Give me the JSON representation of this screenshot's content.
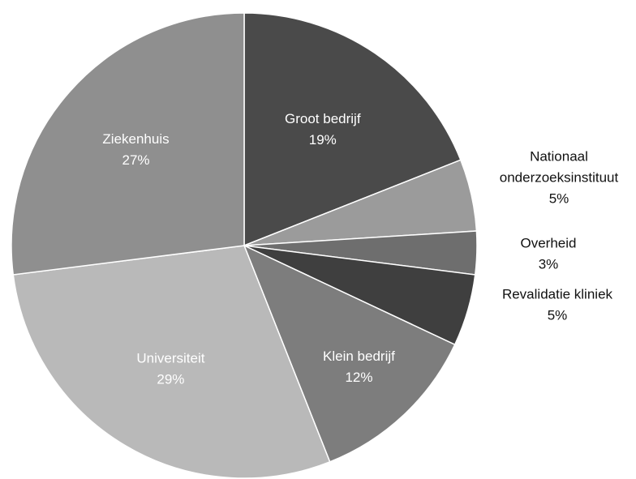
{
  "chart_data": {
    "type": "pie",
    "title": "",
    "start_angle_deg": 0,
    "direction": "clockwise",
    "slices": [
      {
        "label": "Groot bedrijf",
        "value": 19,
        "value_label": "19%",
        "color": "#4a4a4a",
        "label_pos": "inside"
      },
      {
        "label": "Nationaal onderzoeksinstituut",
        "label_lines": [
          "Nationaal",
          "onderzoeksinstituut"
        ],
        "value": 5,
        "value_label": "5%",
        "color": "#9b9b9b",
        "label_pos": "outside"
      },
      {
        "label": "Overheid",
        "value": 3,
        "value_label": "3%",
        "color": "#6e6e6e",
        "label_pos": "outside"
      },
      {
        "label": "Revalidatie kliniek",
        "value": 5,
        "value_label": "5%",
        "color": "#3f3f3f",
        "label_pos": "outside"
      },
      {
        "label": "Klein bedrijf",
        "value": 12,
        "value_label": "12%",
        "color": "#7d7d7d",
        "label_pos": "inside"
      },
      {
        "label": "Universiteit",
        "value": 29,
        "value_label": "29%",
        "color": "#b9b9b9",
        "label_pos": "inside"
      },
      {
        "label": "Ziekenhuis",
        "value": 27,
        "value_label": "27%",
        "color": "#8f8f8f",
        "label_pos": "inside"
      }
    ]
  }
}
